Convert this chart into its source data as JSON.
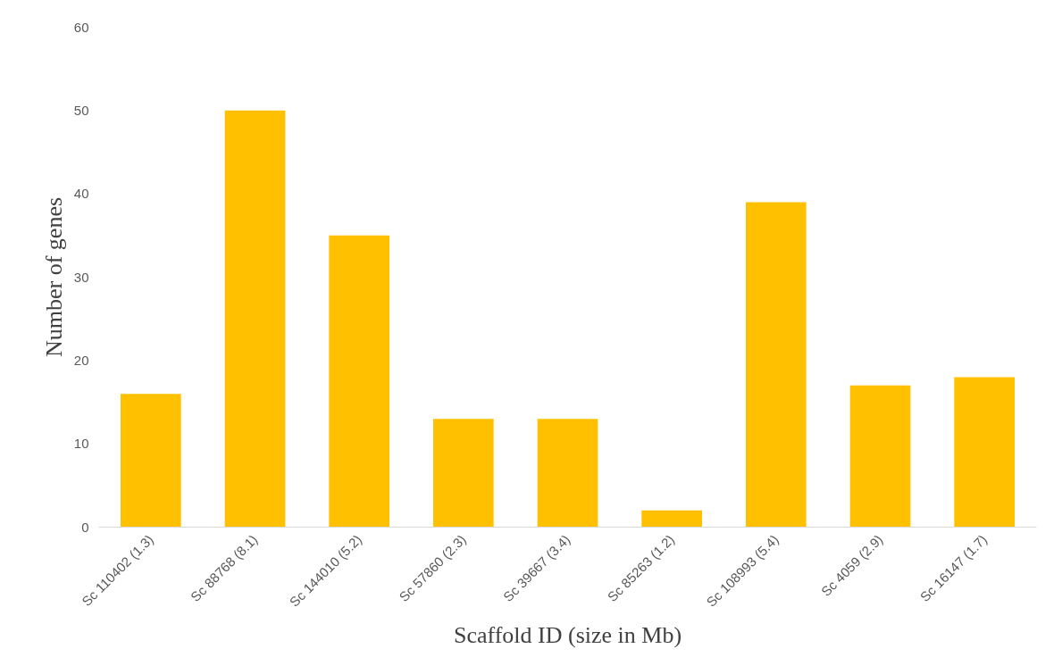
{
  "chart_data": {
    "type": "bar",
    "xlabel": "Scaffold ID (size in Mb)",
    "ylabel": "Number of genes",
    "categories": [
      "Sc 110402 (1.3)",
      "Sc 88768 (8.1)",
      "Sc 144010 (5.2)",
      "Sc 57860 (2.3)",
      "Sc 39667 (3.4)",
      "Sc 85263 (1.2)",
      "Sc 108993 (5.4)",
      "Sc 4059 (2.9)",
      "Sc 16147 (1.7)"
    ],
    "values": [
      16,
      50,
      35,
      13,
      13,
      2,
      39,
      17,
      18
    ],
    "color": "#ffc000",
    "ylim": [
      0,
      60
    ],
    "yticks": [
      0,
      10,
      20,
      30,
      40,
      50,
      60
    ],
    "grid": false
  }
}
